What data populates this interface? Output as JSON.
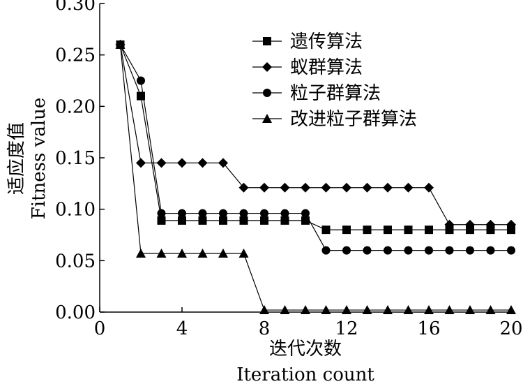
{
  "chart_data": {
    "type": "line",
    "title": "",
    "xlabel": "迭代次数",
    "xlabel_en": "Iteration count",
    "ylabel": "适应度值",
    "ylabel_en": "Fitness value",
    "xlim": [
      0,
      20
    ],
    "ylim": [
      0,
      0.3
    ],
    "xticks": [
      0,
      4,
      8,
      12,
      16,
      20
    ],
    "yticks": [
      "0.00",
      "0.05",
      "0.10",
      "0.15",
      "0.20",
      "0.25",
      "0.30"
    ],
    "grid": false,
    "legend_position": "top-right",
    "x": [
      1,
      2,
      3,
      4,
      5,
      6,
      7,
      8,
      9,
      10,
      11,
      12,
      13,
      14,
      15,
      16,
      17,
      18,
      19,
      20
    ],
    "series": [
      {
        "name": "遗传算法",
        "marker": "square",
        "values": [
          0.26,
          0.21,
          0.089,
          0.089,
          0.089,
          0.089,
          0.089,
          0.089,
          0.089,
          0.089,
          0.08,
          0.08,
          0.08,
          0.08,
          0.08,
          0.08,
          0.08,
          0.08,
          0.08,
          0.08
        ]
      },
      {
        "name": "蚁群算法",
        "marker": "diamond",
        "values": [
          0.26,
          0.145,
          0.145,
          0.145,
          0.145,
          0.145,
          0.121,
          0.121,
          0.121,
          0.121,
          0.121,
          0.121,
          0.121,
          0.121,
          0.121,
          0.121,
          0.085,
          0.085,
          0.085,
          0.085
        ]
      },
      {
        "name": "粒子群算法",
        "marker": "circle",
        "values": [
          0.26,
          0.225,
          0.096,
          0.096,
          0.096,
          0.096,
          0.096,
          0.096,
          0.096,
          0.096,
          0.06,
          0.06,
          0.06,
          0.06,
          0.06,
          0.06,
          0.06,
          0.06,
          0.06,
          0.06
        ]
      },
      {
        "name": "改进粒子群算法",
        "marker": "triangle",
        "values": [
          0.26,
          0.057,
          0.057,
          0.057,
          0.057,
          0.057,
          0.057,
          0.002,
          0.002,
          0.002,
          0.002,
          0.002,
          0.002,
          0.002,
          0.002,
          0.002,
          0.002,
          0.002,
          0.002,
          0.002
        ]
      }
    ]
  }
}
